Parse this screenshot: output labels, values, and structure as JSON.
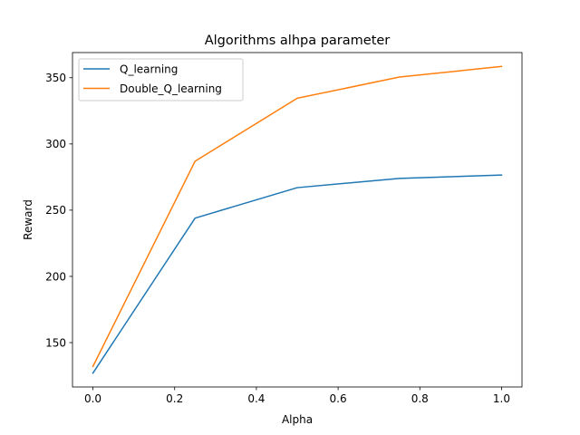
{
  "chart_data": {
    "type": "line",
    "title": "Algorithms alhpa parameter",
    "xlabel": "Alpha",
    "ylabel": "Reward",
    "x": [
      0.0,
      0.25,
      0.5,
      0.75,
      1.0
    ],
    "series": [
      {
        "name": "Q_learning",
        "color": "#1f77b4",
        "values": [
          127,
          244,
          267,
          274,
          276.5
        ]
      },
      {
        "name": "Double_Q_learning",
        "color": "#ff7f0e",
        "values": [
          132,
          287,
          334.5,
          350.5,
          358.5
        ]
      }
    ],
    "xlim": [
      -0.05,
      1.05
    ],
    "ylim": [
      116.5,
      369
    ],
    "xticks": [
      0.0,
      0.2,
      0.4,
      0.6,
      0.8,
      1.0
    ],
    "xtick_labels": [
      "0.0",
      "0.2",
      "0.4",
      "0.6",
      "0.8",
      "1.0"
    ],
    "yticks": [
      150,
      200,
      250,
      300,
      350
    ],
    "ytick_labels": [
      "150",
      "200",
      "250",
      "300",
      "350"
    ],
    "grid": false,
    "legend_position": "top-left"
  }
}
